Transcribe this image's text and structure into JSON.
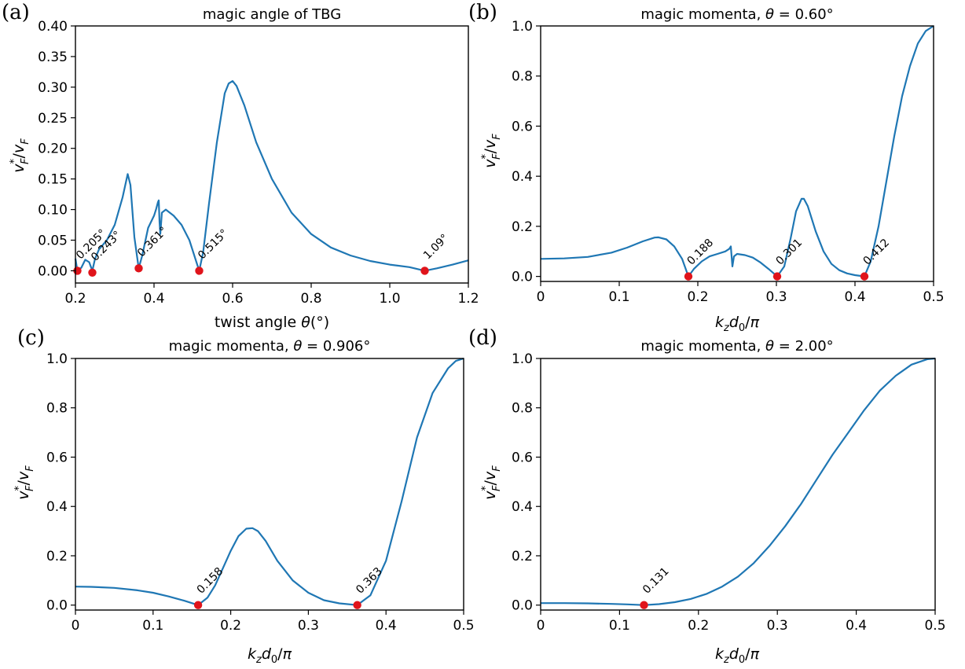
{
  "chart_data": [
    {
      "panel": "(a)",
      "type": "line",
      "title": "magic angle of TBG",
      "xlabel": "twist angle θ(°)",
      "ylabel": "v*_F/v_F",
      "xlim": [
        0.2,
        1.2
      ],
      "ylim": [
        -0.02,
        0.4
      ],
      "xticks": [
        0.2,
        0.4,
        0.6,
        0.8,
        1.0,
        1.2
      ],
      "xtick_labels": [
        "0.2",
        "0.4",
        "0.6",
        "0.8",
        "1.0",
        "1.2"
      ],
      "yticks": [
        0.0,
        0.05,
        0.1,
        0.15,
        0.2,
        0.25,
        0.3,
        0.35,
        0.4
      ],
      "ytick_labels": [
        "0.00",
        "0.05",
        "0.10",
        "0.15",
        "0.20",
        "0.25",
        "0.30",
        "0.35",
        "0.40"
      ],
      "grid": false,
      "color": "#1f77b4",
      "marker_color": "#e0141b",
      "series": [
        {
          "x": [
            0.2,
            0.205,
            0.215,
            0.225,
            0.235,
            0.243,
            0.25,
            0.26,
            0.28,
            0.3,
            0.32,
            0.333,
            0.34,
            0.35,
            0.361,
            0.37,
            0.385,
            0.4,
            0.405,
            0.41,
            0.412,
            0.414,
            0.416,
            0.42,
            0.43,
            0.45,
            0.47,
            0.49,
            0.505,
            0.515,
            0.525,
            0.54,
            0.56,
            0.58,
            0.59,
            0.6,
            0.61,
            0.63,
            0.66,
            0.7,
            0.75,
            0.8,
            0.85,
            0.9,
            0.95,
            1.0,
            1.05,
            1.089,
            1.12,
            1.16,
            1.2
          ],
          "y": [
            0.02,
            0.0,
            0.005,
            0.018,
            0.014,
            0.0,
            0.02,
            0.035,
            0.05,
            0.075,
            0.12,
            0.158,
            0.14,
            0.055,
            0.004,
            0.025,
            0.07,
            0.09,
            0.1,
            0.112,
            0.115,
            0.08,
            0.06,
            0.095,
            0.1,
            0.09,
            0.075,
            0.05,
            0.02,
            0.0,
            0.03,
            0.11,
            0.21,
            0.29,
            0.306,
            0.31,
            0.302,
            0.27,
            0.21,
            0.15,
            0.095,
            0.06,
            0.038,
            0.025,
            0.016,
            0.01,
            0.006,
            0.0,
            0.004,
            0.01,
            0.017
          ]
        }
      ],
      "markers": [
        {
          "x": 0.205,
          "y": 0.0,
          "label": "0.205°"
        },
        {
          "x": 0.243,
          "y": -0.003,
          "label": "0.243°"
        },
        {
          "x": 0.361,
          "y": 0.004,
          "label": "0.361°"
        },
        {
          "x": 0.515,
          "y": 0.0,
          "label": "0.515°"
        },
        {
          "x": 1.089,
          "y": 0.0,
          "label": "1.09°"
        }
      ]
    },
    {
      "panel": "(b)",
      "type": "line",
      "title": "magic momenta, θ = 0.60°",
      "xlabel": "k_z d_0/π",
      "ylabel": "v*_F/v_F",
      "xlim": [
        0,
        0.5
      ],
      "ylim": [
        -0.02,
        1.0
      ],
      "xticks": [
        0,
        0.1,
        0.2,
        0.3,
        0.4,
        0.5
      ],
      "xtick_labels": [
        "0",
        "0.1",
        "0.2",
        "0.3",
        "0.4",
        "0.5"
      ],
      "yticks": [
        0.0,
        0.2,
        0.4,
        0.6,
        0.8,
        1.0
      ],
      "ytick_labels": [
        "0.0",
        "0.2",
        "0.4",
        "0.6",
        "0.8",
        "1.0"
      ],
      "grid": false,
      "color": "#1f77b4",
      "marker_color": "#e0141b",
      "series": [
        {
          "x": [
            0,
            0.03,
            0.06,
            0.09,
            0.11,
            0.13,
            0.145,
            0.15,
            0.16,
            0.17,
            0.18,
            0.188,
            0.195,
            0.205,
            0.215,
            0.225,
            0.235,
            0.24,
            0.242,
            0.244,
            0.246,
            0.25,
            0.26,
            0.27,
            0.28,
            0.29,
            0.301,
            0.31,
            0.318,
            0.325,
            0.332,
            0.335,
            0.34,
            0.35,
            0.36,
            0.37,
            0.38,
            0.39,
            0.4,
            0.412,
            0.42,
            0.43,
            0.44,
            0.45,
            0.46,
            0.47,
            0.48,
            0.49,
            0.5
          ],
          "y": [
            0.07,
            0.072,
            0.078,
            0.095,
            0.115,
            0.14,
            0.155,
            0.156,
            0.148,
            0.12,
            0.07,
            0.0,
            0.03,
            0.06,
            0.08,
            0.09,
            0.1,
            0.11,
            0.12,
            0.04,
            0.08,
            0.09,
            0.085,
            0.075,
            0.055,
            0.03,
            0.0,
            0.04,
            0.15,
            0.26,
            0.31,
            0.31,
            0.28,
            0.18,
            0.1,
            0.05,
            0.025,
            0.012,
            0.005,
            0.0,
            0.06,
            0.2,
            0.38,
            0.56,
            0.72,
            0.84,
            0.93,
            0.98,
            1.0
          ]
        }
      ],
      "markers": [
        {
          "x": 0.188,
          "y": 0.0,
          "label": "0.188"
        },
        {
          "x": 0.301,
          "y": 0.0,
          "label": "0.301"
        },
        {
          "x": 0.412,
          "y": 0.0,
          "label": "0.412"
        }
      ]
    },
    {
      "panel": "(c)",
      "type": "line",
      "title": "magic momenta, θ = 0.906°",
      "xlabel": "k_z d_0/π",
      "ylabel": "v*_F/v_F",
      "xlim": [
        0,
        0.5
      ],
      "ylim": [
        -0.02,
        1.0
      ],
      "xticks": [
        0,
        0.1,
        0.2,
        0.3,
        0.4,
        0.5
      ],
      "xtick_labels": [
        "0",
        "0.1",
        "0.2",
        "0.3",
        "0.4",
        "0.5"
      ],
      "yticks": [
        0.0,
        0.2,
        0.4,
        0.6,
        0.8,
        1.0
      ],
      "ytick_labels": [
        "0.0",
        "0.2",
        "0.4",
        "0.6",
        "0.8",
        "1.0"
      ],
      "grid": false,
      "color": "#1f77b4",
      "marker_color": "#e0141b",
      "series": [
        {
          "x": [
            0,
            0.02,
            0.05,
            0.08,
            0.1,
            0.12,
            0.14,
            0.158,
            0.17,
            0.18,
            0.19,
            0.2,
            0.21,
            0.22,
            0.228,
            0.235,
            0.245,
            0.26,
            0.28,
            0.3,
            0.32,
            0.34,
            0.363,
            0.38,
            0.4,
            0.42,
            0.44,
            0.46,
            0.48,
            0.49,
            0.5
          ],
          "y": [
            0.075,
            0.074,
            0.07,
            0.06,
            0.05,
            0.035,
            0.018,
            0.0,
            0.03,
            0.08,
            0.15,
            0.22,
            0.28,
            0.31,
            0.312,
            0.3,
            0.26,
            0.18,
            0.1,
            0.05,
            0.02,
            0.007,
            0.0,
            0.04,
            0.18,
            0.42,
            0.68,
            0.86,
            0.96,
            0.99,
            1.0
          ]
        }
      ],
      "markers": [
        {
          "x": 0.158,
          "y": 0.0,
          "label": "0.158"
        },
        {
          "x": 0.363,
          "y": 0.0,
          "label": "0.363"
        }
      ]
    },
    {
      "panel": "(d)",
      "type": "line",
      "title": "magic momenta, θ = 2.00°",
      "xlabel": "k_z d_0/π",
      "ylabel": "v*_F/v_F",
      "xlim": [
        0,
        0.5
      ],
      "ylim": [
        -0.02,
        1.0
      ],
      "xticks": [
        0,
        0.1,
        0.2,
        0.3,
        0.4,
        0.5
      ],
      "xtick_labels": [
        "0",
        "0.1",
        "0.2",
        "0.3",
        "0.4",
        "0.5"
      ],
      "yticks": [
        0.0,
        0.2,
        0.4,
        0.6,
        0.8,
        1.0
      ],
      "ytick_labels": [
        "0.0",
        "0.2",
        "0.4",
        "0.6",
        "0.8",
        "1.0"
      ],
      "grid": false,
      "color": "#1f77b4",
      "marker_color": "#e0141b",
      "series": [
        {
          "x": [
            0,
            0.03,
            0.06,
            0.09,
            0.11,
            0.131,
            0.15,
            0.17,
            0.19,
            0.21,
            0.23,
            0.25,
            0.27,
            0.29,
            0.31,
            0.33,
            0.35,
            0.37,
            0.39,
            0.41,
            0.43,
            0.45,
            0.47,
            0.49,
            0.5
          ],
          "y": [
            0.008,
            0.008,
            0.007,
            0.005,
            0.003,
            0.0,
            0.004,
            0.012,
            0.025,
            0.045,
            0.075,
            0.115,
            0.17,
            0.24,
            0.32,
            0.41,
            0.51,
            0.61,
            0.7,
            0.79,
            0.87,
            0.93,
            0.975,
            0.997,
            1.0
          ]
        }
      ],
      "markers": [
        {
          "x": 0.131,
          "y": 0.0,
          "label": "0.131"
        }
      ]
    }
  ]
}
